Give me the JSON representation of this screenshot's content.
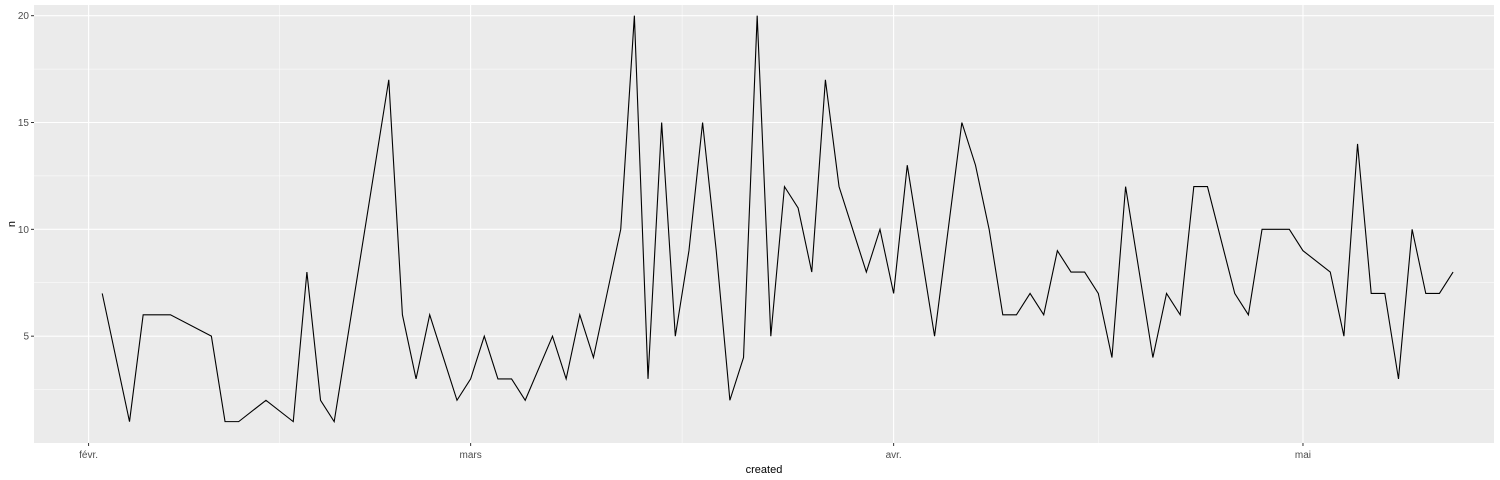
{
  "chart_data": {
    "type": "line",
    "title": "",
    "xlabel": "created",
    "ylabel": "n",
    "x_ticks": [
      {
        "date": "2018-02-01",
        "label": "févr."
      },
      {
        "date": "2018-03-01",
        "label": "mars"
      },
      {
        "date": "2018-04-01",
        "label": "avr."
      },
      {
        "date": "2018-05-01",
        "label": "mai"
      }
    ],
    "y_ticks": [
      5,
      10,
      15,
      20
    ],
    "xlim": [
      "2018-01-28",
      "2018-05-15"
    ],
    "ylim": [
      0,
      20.5
    ],
    "grid": true,
    "line_color": "#000000",
    "panel_background": "#EBEBEB",
    "grid_color": "#FFFFFF",
    "series": [
      {
        "x": [
          "2018-02-02",
          "2018-02-04",
          "2018-02-05",
          "2018-02-07",
          "2018-02-10",
          "2018-02-11",
          "2018-02-12",
          "2018-02-14",
          "2018-02-16",
          "2018-02-17",
          "2018-02-18",
          "2018-02-19",
          "2018-02-21",
          "2018-02-23",
          "2018-02-24",
          "2018-02-25",
          "2018-02-26",
          "2018-02-28",
          "2018-03-01",
          "2018-03-02",
          "2018-03-03",
          "2018-03-04",
          "2018-03-05",
          "2018-03-07",
          "2018-03-08",
          "2018-03-09",
          "2018-03-10",
          "2018-03-11",
          "2018-03-12",
          "2018-03-13",
          "2018-03-14",
          "2018-03-15",
          "2018-03-16",
          "2018-03-17",
          "2018-03-18",
          "2018-03-19",
          "2018-03-20",
          "2018-03-21",
          "2018-03-22",
          "2018-03-23",
          "2018-03-24",
          "2018-03-25",
          "2018-03-26",
          "2018-03-27",
          "2018-03-28",
          "2018-03-29",
          "2018-03-30",
          "2018-03-31",
          "2018-04-01",
          "2018-04-02",
          "2018-04-03",
          "2018-04-04",
          "2018-04-05",
          "2018-04-06",
          "2018-04-07",
          "2018-04-08",
          "2018-04-09",
          "2018-04-10",
          "2018-04-11",
          "2018-04-12",
          "2018-04-13",
          "2018-04-14",
          "2018-04-15",
          "2018-04-16",
          "2018-04-17",
          "2018-04-18",
          "2018-04-19",
          "2018-04-20",
          "2018-04-21",
          "2018-04-22",
          "2018-04-23",
          "2018-04-24",
          "2018-04-26",
          "2018-04-27",
          "2018-04-28",
          "2018-04-30",
          "2018-05-01",
          "2018-05-03",
          "2018-05-04",
          "2018-05-05",
          "2018-05-06",
          "2018-05-07",
          "2018-05-08",
          "2018-05-09",
          "2018-05-10",
          "2018-05-11",
          "2018-05-12"
        ],
        "y": [
          7,
          1,
          6,
          6,
          5,
          1,
          1,
          2,
          1,
          8,
          2,
          1,
          9,
          17,
          6,
          3,
          6,
          2,
          3,
          5,
          3,
          3,
          2,
          5,
          3,
          6,
          4,
          7,
          10,
          20,
          3,
          15,
          5,
          9,
          15,
          9,
          2,
          4,
          20,
          5,
          12,
          11,
          8,
          17,
          12,
          10,
          8,
          10,
          7,
          13,
          9,
          5,
          10,
          15,
          13,
          10,
          6,
          6,
          7,
          6,
          9,
          8,
          8,
          7,
          4,
          12,
          8,
          4,
          7,
          6,
          12,
          12,
          7,
          6,
          10,
          10,
          9,
          8,
          5,
          14,
          7,
          7,
          3,
          10,
          7,
          7,
          8
        ]
      }
    ]
  }
}
